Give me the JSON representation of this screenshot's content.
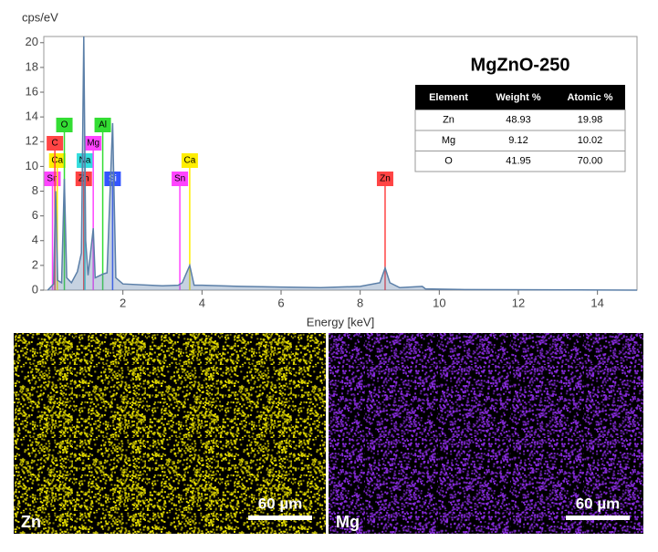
{
  "chart_data": {
    "type": "line",
    "title": "MgZnO-250",
    "y_label": "cps/eV",
    "x_label": "Energy [keV]",
    "xlim": [
      0,
      15
    ],
    "ylim": [
      0,
      20.5
    ],
    "xticks": [
      2,
      4,
      6,
      8,
      10,
      12,
      14
    ],
    "yticks": [
      0,
      2,
      4,
      6,
      8,
      10,
      12,
      14,
      16,
      18,
      20
    ],
    "series": [
      {
        "color": "#5b7fa8",
        "x": [
          0.1,
          0.25,
          0.3,
          0.35,
          0.45,
          0.52,
          0.58,
          0.7,
          0.85,
          0.95,
          1.01,
          1.06,
          1.12,
          1.25,
          1.3,
          1.49,
          1.6,
          1.74,
          1.82,
          2.0,
          3.0,
          3.4,
          3.5,
          3.69,
          3.8,
          4.0,
          5.0,
          6.0,
          7.0,
          8.0,
          8.5,
          8.63,
          8.75,
          9.0,
          9.57,
          9.65,
          10.5,
          15.0
        ],
        "values": [
          0,
          0.5,
          8,
          0.8,
          0.6,
          9,
          1,
          0.6,
          1.5,
          3,
          20.5,
          4,
          1.2,
          5,
          1,
          1.3,
          1.4,
          13.5,
          1,
          0.5,
          0.35,
          0.4,
          0.6,
          2,
          0.4,
          0.4,
          0.3,
          0.25,
          0.2,
          0.3,
          0.6,
          1.8,
          0.6,
          0.2,
          0.3,
          0.1,
          0.05,
          0
        ]
      }
    ],
    "markers": [
      {
        "label": "Sn",
        "energy": 0.22,
        "color": "#ff44ff"
      },
      {
        "label": "Ca",
        "energy": 0.34,
        "color": "#ffee00"
      },
      {
        "label": "C",
        "energy": 0.28,
        "color": "#ff4444"
      },
      {
        "label": "O",
        "energy": 0.52,
        "color": "#33dd33"
      },
      {
        "label": "Zn",
        "energy": 1.01,
        "color": "#ff4444"
      },
      {
        "label": "Na",
        "energy": 1.04,
        "color": "#33dddd"
      },
      {
        "label": "Mg",
        "energy": 1.25,
        "color": "#ff44ff"
      },
      {
        "label": "Al",
        "energy": 1.49,
        "color": "#33dd33"
      },
      {
        "label": "Si",
        "energy": 1.74,
        "color": "#3355ff"
      },
      {
        "label": "Sn",
        "energy": 3.44,
        "color": "#ff44ff"
      },
      {
        "label": "Ca",
        "energy": 3.69,
        "color": "#ffee00"
      },
      {
        "label": "Zn",
        "energy": 8.63,
        "color": "#ff4444"
      }
    ],
    "table": {
      "header": [
        "Element",
        "Weight %",
        "Atomic %"
      ],
      "rows": [
        [
          "Zn",
          "48.93",
          "19.98"
        ],
        [
          "Mg",
          "9.12",
          "10.02"
        ],
        [
          "O",
          "41.95",
          "70.00"
        ]
      ]
    },
    "maps": [
      {
        "label": "Zn",
        "color": "#e8e000",
        "scale_bar": "60 µm"
      },
      {
        "label": "Mg",
        "color": "#8a2be2",
        "scale_bar": "60 µm"
      }
    ]
  }
}
